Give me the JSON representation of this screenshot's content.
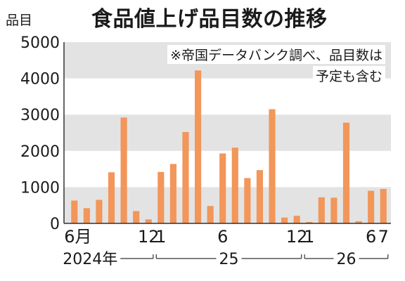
{
  "chart_data": {
    "type": "bar",
    "title": "食品値上げ品目数の推移",
    "unit_label": "品目",
    "notes": [
      "※帝国データバンク調べ、品目数は",
      "予定も含む"
    ],
    "ylim": [
      0,
      5000
    ],
    "y_ticks": [
      "0",
      "1000",
      "2000",
      "3000",
      "4000",
      "5000"
    ],
    "y_tick_values": [
      0,
      1000,
      2000,
      3000,
      4000,
      5000
    ],
    "grid_bands": true,
    "bar_color": "#F2965A",
    "band_color": "#E3E3E3",
    "categories": [
      "2024-06",
      "2024-07",
      "2024-08",
      "2024-09",
      "2024-10",
      "2024-11",
      "2024-12",
      "2025-01",
      "2025-02",
      "2025-03",
      "2025-04",
      "2025-05",
      "2025-06",
      "2025-07",
      "2025-08",
      "2025-09",
      "2025-10",
      "2025-11",
      "2025-12",
      "2026-01",
      "2026-02",
      "2026-03",
      "2026-04",
      "2026-05",
      "2026-06",
      "2026-07"
    ],
    "values": [
      630,
      420,
      650,
      1410,
      2920,
      340,
      110,
      1420,
      1640,
      2520,
      4220,
      480,
      1930,
      2090,
      1250,
      1470,
      3150,
      160,
      210,
      40,
      720,
      710,
      2780,
      60,
      900,
      950
    ],
    "x_tick_labels": [
      {
        "index": 0,
        "text": "6月"
      },
      {
        "index": 6,
        "text": "12"
      },
      {
        "index": 7,
        "text": "1"
      },
      {
        "index": 12,
        "text": "6"
      },
      {
        "index": 18,
        "text": "12"
      },
      {
        "index": 19,
        "text": "1"
      },
      {
        "index": 24,
        "text": "6"
      },
      {
        "index": 25,
        "text": "7"
      }
    ],
    "year_labels": [
      {
        "from": 0,
        "to": 6,
        "text": "2024年"
      },
      {
        "from": 7,
        "to": 18,
        "text": "25"
      },
      {
        "from": 19,
        "to": 25,
        "text": "26"
      }
    ]
  }
}
